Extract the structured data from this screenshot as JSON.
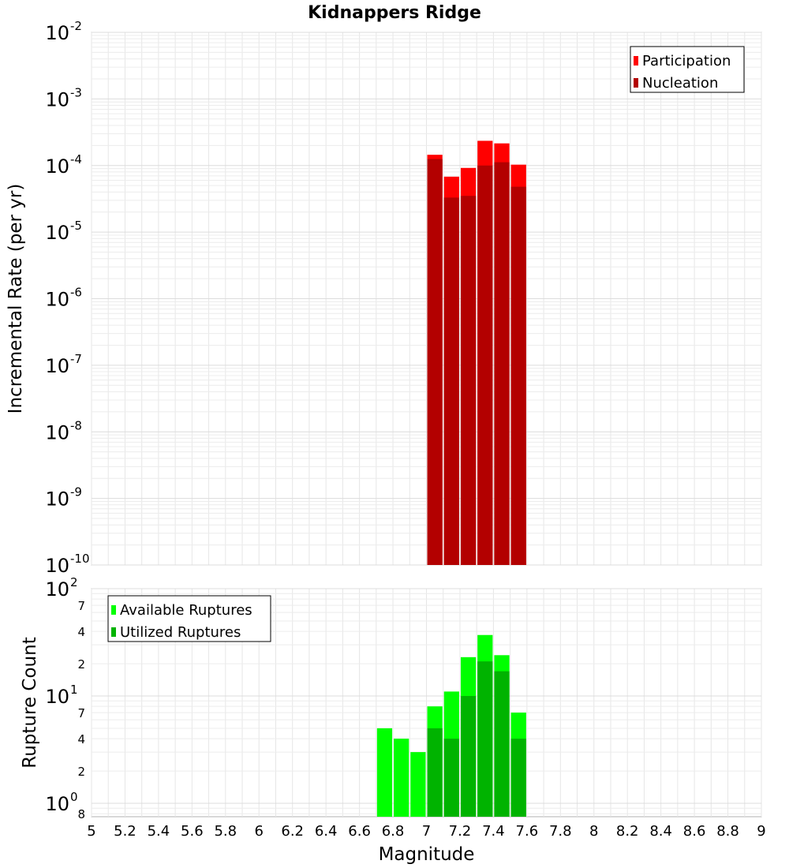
{
  "chart_data": [
    {
      "type": "bar",
      "title": "Kidnappers Ridge",
      "xlabel": "Magnitude",
      "ylabel": "Incremental Rate (per yr)",
      "yscale": "log",
      "ylim": [
        1e-10,
        0.01
      ],
      "xlim": [
        5,
        9
      ],
      "bin_width": 0.1,
      "legend_position": "top-right",
      "ytick_labels": [
        {
          "base": "10",
          "exp": "-10",
          "value": 1e-10
        },
        {
          "base": "10",
          "exp": "-9",
          "value": 1e-09
        },
        {
          "base": "10",
          "exp": "-8",
          "value": 1e-08
        },
        {
          "base": "10",
          "exp": "-7",
          "value": 1e-07
        },
        {
          "base": "10",
          "exp": "-6",
          "value": 1e-06
        },
        {
          "base": "10",
          "exp": "-5",
          "value": 1e-05
        },
        {
          "base": "10",
          "exp": "-4",
          "value": 0.0001
        },
        {
          "base": "10",
          "exp": "-3",
          "value": 0.001
        },
        {
          "base": "10",
          "exp": "-2",
          "value": 0.01
        }
      ],
      "series": [
        {
          "name": "Participation",
          "color": "#ff0000",
          "x": [
            7.05,
            7.15,
            7.25,
            7.35,
            7.45,
            7.55
          ],
          "values": [
            0.000145,
            6.8e-05,
            9.2e-05,
            0.000235,
            0.000215,
            0.000103
          ]
        },
        {
          "name": "Nucleation",
          "color": "#b30000",
          "x": [
            7.05,
            7.15,
            7.25,
            7.35,
            7.45,
            7.55
          ],
          "values": [
            0.000125,
            3.3e-05,
            3.5e-05,
            0.0001,
            0.000112,
            4.8e-05
          ]
        }
      ]
    },
    {
      "type": "bar",
      "xlabel": "Magnitude",
      "ylabel": "Rupture Count",
      "yscale": "log",
      "ylim": [
        0.75,
        100
      ],
      "xlim": [
        5,
        9
      ],
      "bin_width": 0.1,
      "legend_position": "top-left",
      "ytick_labels": [
        {
          "base": "10",
          "exp": "0",
          "value": 1
        },
        {
          "base": "10",
          "exp": "1",
          "value": 10
        },
        {
          "base": "10",
          "exp": "2",
          "value": 100
        }
      ],
      "yminor_labels": [
        {
          "label": "8",
          "value": 0.8
        },
        {
          "label": "2",
          "value": 2
        },
        {
          "label": "4",
          "value": 4
        },
        {
          "label": "7",
          "value": 7
        },
        {
          "label": "2",
          "value": 20
        },
        {
          "label": "4",
          "value": 40
        },
        {
          "label": "7",
          "value": 70
        }
      ],
      "series": [
        {
          "name": "Available Ruptures",
          "color": "#00ff00",
          "x": [
            6.75,
            6.85,
            6.95,
            7.05,
            7.15,
            7.25,
            7.35,
            7.45,
            7.55
          ],
          "values": [
            5,
            4,
            3,
            8,
            11,
            23,
            37,
            24,
            7
          ]
        },
        {
          "name": "Utilized Ruptures",
          "color": "#00b300",
          "x": [
            6.75,
            6.85,
            6.95,
            7.05,
            7.15,
            7.25,
            7.35,
            7.45,
            7.55
          ],
          "values": [
            0,
            0,
            0,
            5,
            4,
            10,
            21,
            17,
            4
          ]
        }
      ]
    }
  ],
  "x_ticks": [
    5,
    5.2,
    5.4,
    5.6,
    5.8,
    6,
    6.2,
    6.4,
    6.6,
    6.8,
    7,
    7.2,
    7.4,
    7.6,
    7.8,
    8,
    8.2,
    8.4,
    8.6,
    8.8,
    9
  ],
  "x_tick_labels": [
    "5",
    "5.2",
    "5.4",
    "5.6",
    "5.8",
    "6",
    "6.2",
    "6.4",
    "6.6",
    "6.8",
    "7",
    "7.2",
    "7.4",
    "7.6",
    "7.8",
    "8",
    "8.2",
    "8.4",
    "8.6",
    "8.8",
    "9"
  ]
}
